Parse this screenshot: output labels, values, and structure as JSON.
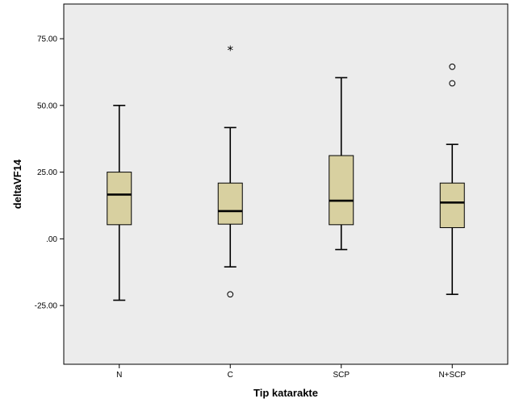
{
  "chart_data": {
    "type": "boxplot",
    "xlabel": "Tip katarakte",
    "ylabel": "deltaVF14",
    "ylim": [
      -47,
      88
    ],
    "yticks": [
      -25,
      0,
      25,
      50,
      75
    ],
    "ytick_labels": [
      "-25.00",
      ".00",
      "25.00",
      "50.00",
      "75.00"
    ],
    "grid": false,
    "colors": {
      "plot_bg": "#ECECEC",
      "box_fill": "#D8D0A0",
      "stroke": "#000000"
    },
    "groups": [
      {
        "name": "N",
        "whisker_low": -23,
        "q1": 5.3,
        "median": 16.6,
        "q3": 25,
        "whisker_high": 50,
        "outliers": [],
        "extremes": []
      },
      {
        "name": "C",
        "whisker_low": -10.5,
        "q1": 5.5,
        "median": 10.4,
        "q3": 20.9,
        "whisker_high": 41.7,
        "outliers": [
          -20.8
        ],
        "extremes": [
          71
        ]
      },
      {
        "name": "SCP",
        "whisker_low": -4,
        "q1": 5.3,
        "median": 14.3,
        "q3": 31.2,
        "whisker_high": 60.4,
        "outliers": [],
        "extremes": []
      },
      {
        "name": "N+SCP",
        "whisker_low": -20.8,
        "q1": 4.2,
        "median": 13.6,
        "q3": 20.9,
        "whisker_high": 35.4,
        "outliers": [
          58.3,
          64.5
        ],
        "extremes": []
      }
    ]
  }
}
